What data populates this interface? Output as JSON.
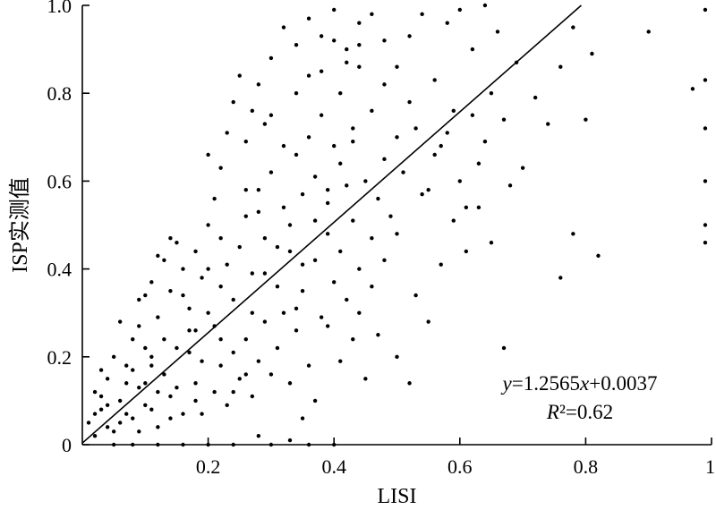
{
  "chart_data": {
    "type": "scatter",
    "title": "",
    "xlabel": "LISI",
    "ylabel": "ISP实测值",
    "xlim": [
      0,
      1
    ],
    "ylim": [
      0,
      1
    ],
    "x_ticks": [
      {
        "value": 0.2,
        "label": "0.2"
      },
      {
        "value": 0.4,
        "label": "0.4"
      },
      {
        "value": 0.6,
        "label": "0.6"
      },
      {
        "value": 0.8,
        "label": "0.8"
      },
      {
        "value": 1.0,
        "label": "1"
      }
    ],
    "y_ticks": [
      {
        "value": 0,
        "label": "0"
      },
      {
        "value": 0.2,
        "label": "0.2"
      },
      {
        "value": 0.4,
        "label": "0.4"
      },
      {
        "value": 0.6,
        "label": "0.6"
      },
      {
        "value": 0.8,
        "label": "0.8"
      },
      {
        "value": 1.0,
        "label": "1.0"
      }
    ],
    "grid": false,
    "legend": "none",
    "regression": {
      "slope": 1.2565,
      "intercept": 0.0037,
      "equation_label": {
        "y": "y",
        "eq1": "=1.2565",
        "x": "x",
        "eq2": "+0.0037"
      },
      "r2_label": {
        "r": "R",
        "rest": "²=0.62"
      }
    },
    "points": [
      [
        0.01,
        0.05
      ],
      [
        0.02,
        0.12
      ],
      [
        0.03,
        0.08
      ],
      [
        0.04,
        0.15
      ],
      [
        0.05,
        0.03
      ],
      [
        0.06,
        0.1
      ],
      [
        0.07,
        0.18
      ],
      [
        0.08,
        0.06
      ],
      [
        0.09,
        0.13
      ],
      [
        0.1,
        0.09
      ],
      [
        0.11,
        0.2
      ],
      [
        0.12,
        0.04
      ],
      [
        0.13,
        0.16
      ],
      [
        0.14,
        0.11
      ],
      [
        0.15,
        0.22
      ],
      [
        0.16,
        0.07
      ],
      [
        0.17,
        0.26
      ],
      [
        0.18,
        0.14
      ],
      [
        0.19,
        0.19
      ],
      [
        0.2,
        0.3
      ],
      [
        0.02,
        0.02
      ],
      [
        0.03,
        0.17
      ],
      [
        0.05,
        0.2
      ],
      [
        0.06,
        0.28
      ],
      [
        0.08,
        0.24
      ],
      [
        0.09,
        0.33
      ],
      [
        0.11,
        0.37
      ],
      [
        0.12,
        0.29
      ],
      [
        0.13,
        0.42
      ],
      [
        0.14,
        0.35
      ],
      [
        0.15,
        0.46
      ],
      [
        0.16,
        0.4
      ],
      [
        0.17,
        0.31
      ],
      [
        0.18,
        0.44
      ],
      [
        0.19,
        0.38
      ],
      [
        0.2,
        0.5
      ],
      [
        0.21,
        0.27
      ],
      [
        0.22,
        0.36
      ],
      [
        0.23,
        0.41
      ],
      [
        0.24,
        0.33
      ],
      [
        0.21,
        0.12
      ],
      [
        0.22,
        0.18
      ],
      [
        0.23,
        0.09
      ],
      [
        0.24,
        0.21
      ],
      [
        0.25,
        0.15
      ],
      [
        0.26,
        0.24
      ],
      [
        0.27,
        0.11
      ],
      [
        0.28,
        0.19
      ],
      [
        0.29,
        0.28
      ],
      [
        0.3,
        0.16
      ],
      [
        0.25,
        0.45
      ],
      [
        0.26,
        0.52
      ],
      [
        0.27,
        0.39
      ],
      [
        0.28,
        0.58
      ],
      [
        0.29,
        0.47
      ],
      [
        0.3,
        0.62
      ],
      [
        0.31,
        0.36
      ],
      [
        0.32,
        0.54
      ],
      [
        0.33,
        0.44
      ],
      [
        0.34,
        0.66
      ],
      [
        0.31,
        0.22
      ],
      [
        0.32,
        0.3
      ],
      [
        0.33,
        0.14
      ],
      [
        0.34,
        0.26
      ],
      [
        0.35,
        0.35
      ],
      [
        0.36,
        0.18
      ],
      [
        0.37,
        0.42
      ],
      [
        0.38,
        0.29
      ],
      [
        0.39,
        0.48
      ],
      [
        0.4,
        0.37
      ],
      [
        0.35,
        0.57
      ],
      [
        0.36,
        0.7
      ],
      [
        0.37,
        0.61
      ],
      [
        0.38,
        0.75
      ],
      [
        0.39,
        0.55
      ],
      [
        0.4,
        0.68
      ],
      [
        0.41,
        0.8
      ],
      [
        0.42,
        0.59
      ],
      [
        0.43,
        0.72
      ],
      [
        0.44,
        0.86
      ],
      [
        0.41,
        0.44
      ],
      [
        0.42,
        0.33
      ],
      [
        0.43,
        0.51
      ],
      [
        0.44,
        0.4
      ],
      [
        0.45,
        0.6
      ],
      [
        0.46,
        0.47
      ],
      [
        0.47,
        0.56
      ],
      [
        0.48,
        0.65
      ],
      [
        0.49,
        0.52
      ],
      [
        0.5,
        0.7
      ],
      [
        0.3,
        0.88
      ],
      [
        0.32,
        0.95
      ],
      [
        0.34,
        0.91
      ],
      [
        0.36,
        0.97
      ],
      [
        0.38,
        0.93
      ],
      [
        0.4,
        0.99
      ],
      [
        0.42,
        0.9
      ],
      [
        0.44,
        0.96
      ],
      [
        0.46,
        0.98
      ],
      [
        0.48,
        0.92
      ],
      [
        0.23,
        0.71
      ],
      [
        0.24,
        0.78
      ],
      [
        0.25,
        0.84
      ],
      [
        0.26,
        0.69
      ],
      [
        0.27,
        0.76
      ],
      [
        0.28,
        0.82
      ],
      [
        0.29,
        0.73
      ],
      [
        0.22,
        0.63
      ],
      [
        0.21,
        0.56
      ],
      [
        0.2,
        0.66
      ],
      [
        0.5,
        0.86
      ],
      [
        0.52,
        0.93
      ],
      [
        0.54,
        0.98
      ],
      [
        0.56,
        0.83
      ],
      [
        0.58,
        0.96
      ],
      [
        0.6,
        0.99
      ],
      [
        0.62,
        0.9
      ],
      [
        0.64,
        1.0
      ],
      [
        0.66,
        0.94
      ],
      [
        0.52,
        0.78
      ],
      [
        0.51,
        0.62
      ],
      [
        0.53,
        0.72
      ],
      [
        0.55,
        0.58
      ],
      [
        0.57,
        0.68
      ],
      [
        0.59,
        0.76
      ],
      [
        0.61,
        0.54
      ],
      [
        0.63,
        0.64
      ],
      [
        0.65,
        0.8
      ],
      [
        0.67,
        0.74
      ],
      [
        0.69,
        0.87
      ],
      [
        0.7,
        0.63
      ],
      [
        0.72,
        0.79
      ],
      [
        0.74,
        0.73
      ],
      [
        0.76,
        0.86
      ],
      [
        0.78,
        0.95
      ],
      [
        0.8,
        0.74
      ],
      [
        0.81,
        0.89
      ],
      [
        0.9,
        0.94
      ],
      [
        0.97,
        0.81
      ],
      [
        0.99,
        0.83
      ],
      [
        0.99,
        0.72
      ],
      [
        0.99,
        0.6
      ],
      [
        0.99,
        0.5
      ],
      [
        0.99,
        0.46
      ],
      [
        0.99,
        0.99
      ],
      [
        0.78,
        0.48
      ],
      [
        0.76,
        0.38
      ],
      [
        0.82,
        0.43
      ],
      [
        0.67,
        0.22
      ],
      [
        0.52,
        0.14
      ],
      [
        0.45,
        0.15
      ],
      [
        0.43,
        0.24
      ],
      [
        0.41,
        0.19
      ],
      [
        0.39,
        0.27
      ],
      [
        0.37,
        0.1
      ],
      [
        0.35,
        0.06
      ],
      [
        0.33,
        0.01
      ],
      [
        0.28,
        0.02
      ],
      [
        0.24,
        0.0
      ],
      [
        0.2,
        0.0
      ],
      [
        0.16,
        0.0
      ],
      [
        0.12,
        0.0
      ],
      [
        0.08,
        0.0
      ],
      [
        0.05,
        0.0
      ],
      [
        0.3,
        0.0
      ],
      [
        0.36,
        0.0
      ],
      [
        0.4,
        0.0
      ],
      [
        0.34,
        0.31
      ],
      [
        0.26,
        0.16
      ],
      [
        0.18,
        0.1
      ],
      [
        0.14,
        0.06
      ],
      [
        0.1,
        0.14
      ],
      [
        0.07,
        0.07
      ],
      [
        0.04,
        0.04
      ],
      [
        0.13,
        0.24
      ],
      [
        0.17,
        0.21
      ],
      [
        0.19,
        0.07
      ],
      [
        0.22,
        0.24
      ],
      [
        0.24,
        0.12
      ],
      [
        0.27,
        0.3
      ],
      [
        0.29,
        0.39
      ],
      [
        0.31,
        0.45
      ],
      [
        0.33,
        0.5
      ],
      [
        0.35,
        0.41
      ],
      [
        0.37,
        0.51
      ],
      [
        0.39,
        0.58
      ],
      [
        0.41,
        0.64
      ],
      [
        0.43,
        0.69
      ],
      [
        0.46,
        0.76
      ],
      [
        0.48,
        0.82
      ],
      [
        0.44,
        0.3
      ],
      [
        0.46,
        0.36
      ],
      [
        0.48,
        0.42
      ],
      [
        0.5,
        0.48
      ],
      [
        0.54,
        0.57
      ],
      [
        0.56,
        0.66
      ],
      [
        0.58,
        0.71
      ],
      [
        0.6,
        0.6
      ],
      [
        0.62,
        0.75
      ],
      [
        0.64,
        0.69
      ],
      [
        0.12,
        0.43
      ],
      [
        0.14,
        0.47
      ],
      [
        0.1,
        0.34
      ],
      [
        0.09,
        0.27
      ],
      [
        0.11,
        0.18
      ],
      [
        0.15,
        0.13
      ],
      [
        0.16,
        0.34
      ],
      [
        0.18,
        0.26
      ],
      [
        0.2,
        0.4
      ],
      [
        0.22,
        0.47
      ],
      [
        0.26,
        0.58
      ],
      [
        0.28,
        0.53
      ],
      [
        0.3,
        0.75
      ],
      [
        0.32,
        0.68
      ],
      [
        0.34,
        0.8
      ],
      [
        0.36,
        0.84
      ],
      [
        0.38,
        0.85
      ],
      [
        0.4,
        0.92
      ],
      [
        0.42,
        0.87
      ],
      [
        0.44,
        0.91
      ],
      [
        0.5,
        0.2
      ],
      [
        0.55,
        0.28
      ],
      [
        0.47,
        0.25
      ],
      [
        0.53,
        0.34
      ],
      [
        0.57,
        0.41
      ],
      [
        0.59,
        0.51
      ],
      [
        0.61,
        0.44
      ],
      [
        0.63,
        0.54
      ],
      [
        0.65,
        0.46
      ],
      [
        0.68,
        0.59
      ],
      [
        0.02,
        0.07
      ],
      [
        0.03,
        0.11
      ],
      [
        0.04,
        0.09
      ],
      [
        0.06,
        0.05
      ],
      [
        0.07,
        0.14
      ],
      [
        0.08,
        0.17
      ],
      [
        0.09,
        0.03
      ],
      [
        0.1,
        0.22
      ],
      [
        0.11,
        0.08
      ],
      [
        0.12,
        0.12
      ]
    ]
  }
}
